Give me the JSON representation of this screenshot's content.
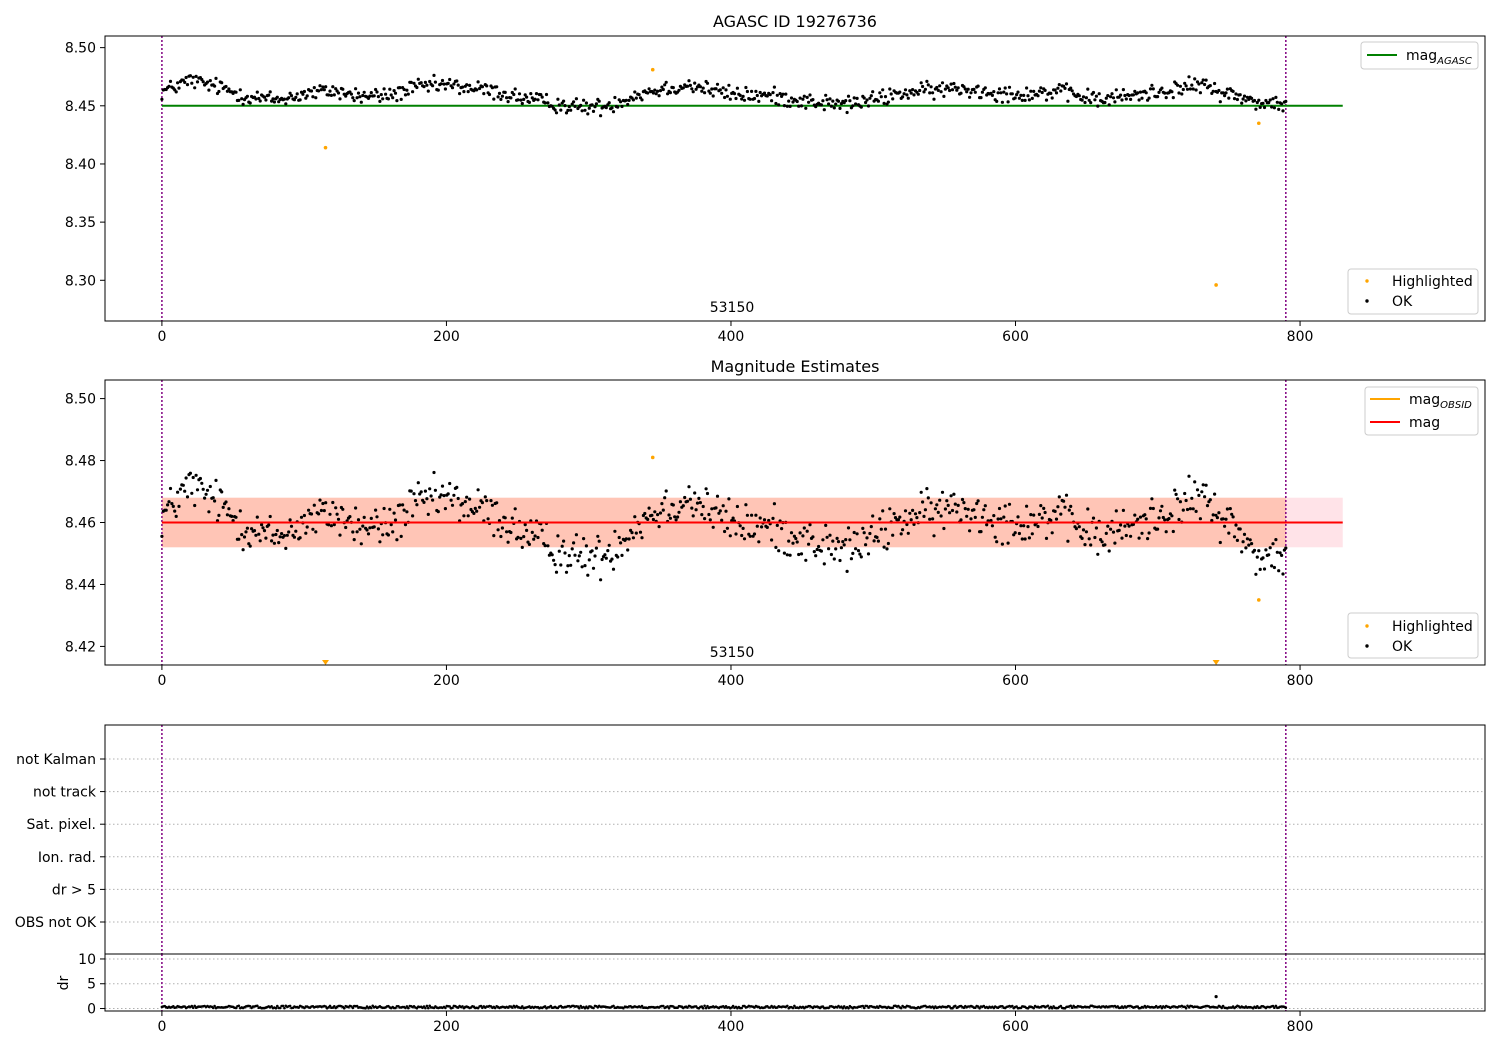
{
  "chart_data": [
    {
      "type": "scatter",
      "title": "AGASC ID 19276736",
      "xlim": [
        -40,
        930
      ],
      "ylim": [
        8.265,
        8.51
      ],
      "x_ticks": [
        0,
        200,
        400,
        600,
        800
      ],
      "x_tick_labels": [
        "0",
        "200",
        "400",
        "600",
        "800"
      ],
      "y_ticks": [
        8.3,
        8.35,
        8.4,
        8.45,
        8.5
      ],
      "y_tick_labels": [
        "8.30",
        "8.35",
        "8.40",
        "8.45",
        "8.50"
      ],
      "obsid_annotation": "53150",
      "obsid_boundaries": [
        0,
        790
      ],
      "reference_lines": [
        {
          "name": "mag_AGASC",
          "legend_main": "mag",
          "legend_sub": "AGASC",
          "y": 8.45,
          "x_range": [
            0,
            830
          ],
          "color": "#008000"
        }
      ],
      "line_legend_position": "top-right",
      "series": [
        {
          "name": "Highlighted",
          "color": "#ffa500",
          "points": [
            [
              115,
              8.414
            ],
            [
              345,
              8.481
            ],
            [
              741,
              8.296
            ],
            [
              771,
              8.435
            ]
          ]
        },
        {
          "name": "OK",
          "color": "#000000",
          "n_points": 790,
          "x_range": [
            0,
            790
          ],
          "y_profile_x": [
            0,
            20,
            40,
            60,
            80,
            100,
            120,
            140,
            160,
            180,
            200,
            230,
            260,
            290,
            310,
            340,
            370,
            400,
            430,
            460,
            480,
            500,
            520,
            560,
            600,
            630,
            660,
            700,
            730,
            750,
            770,
            790
          ],
          "y_profile": [
            8.462,
            8.472,
            8.466,
            8.458,
            8.455,
            8.46,
            8.463,
            8.458,
            8.459,
            8.466,
            8.468,
            8.463,
            8.455,
            8.449,
            8.449,
            8.462,
            8.468,
            8.46,
            8.458,
            8.453,
            8.451,
            8.455,
            8.461,
            8.465,
            8.46,
            8.462,
            8.455,
            8.462,
            8.468,
            8.46,
            8.453,
            8.451
          ],
          "y_spread": 0.005
        }
      ],
      "legend": [
        {
          "label": "Highlighted",
          "color": "#ffa500"
        },
        {
          "label": "OK",
          "color": "#000000"
        }
      ],
      "legend_position": "bottom-right"
    },
    {
      "type": "scatter",
      "title": "Magnitude Estimates",
      "xlim": [
        -40,
        930
      ],
      "ylim": [
        8.414,
        8.506
      ],
      "x_ticks": [
        0,
        200,
        400,
        600,
        800
      ],
      "x_tick_labels": [
        "0",
        "200",
        "400",
        "600",
        "800"
      ],
      "y_ticks": [
        8.42,
        8.44,
        8.46,
        8.48,
        8.5
      ],
      "y_tick_labels": [
        "8.42",
        "8.44",
        "8.46",
        "8.48",
        "8.50"
      ],
      "obsid_annotation": "53150",
      "obsid_boundaries": [
        0,
        790
      ],
      "bands": [
        {
          "y_range": [
            8.452,
            8.468
          ],
          "x_range": [
            0,
            830
          ],
          "color": "#ffc0cb"
        },
        {
          "y_range": [
            8.452,
            8.468
          ],
          "x_range": [
            0,
            790
          ],
          "color": "#ffa07a"
        }
      ],
      "reference_lines": [
        {
          "name": "mag_OBSID",
          "legend_main": "mag",
          "legend_sub": "OBSID",
          "y": 8.46,
          "x_range": [
            0,
            790
          ],
          "color": "#ffa500"
        },
        {
          "name": "mag",
          "legend_main": "mag",
          "legend_sub": "",
          "y": 8.46,
          "x_range": [
            0,
            830
          ],
          "color": "#ff0000"
        }
      ],
      "line_legend_position": "top-right",
      "offscale_markers": [
        {
          "x": 115,
          "color": "#ffa500"
        },
        {
          "x": 741,
          "color": "#ffa500"
        }
      ],
      "series": [
        {
          "name": "Highlighted",
          "color": "#ffa500",
          "points": [
            [
              345,
              8.481
            ],
            [
              771,
              8.435
            ]
          ]
        },
        {
          "name": "OK",
          "color": "#000000",
          "n_points": 790,
          "x_range": [
            0,
            790
          ],
          "y_profile_x": [
            0,
            20,
            40,
            60,
            80,
            100,
            120,
            140,
            160,
            180,
            200,
            230,
            260,
            290,
            310,
            340,
            370,
            400,
            430,
            460,
            480,
            500,
            520,
            560,
            600,
            630,
            660,
            700,
            730,
            750,
            770,
            790
          ],
          "y_profile": [
            8.462,
            8.472,
            8.466,
            8.458,
            8.455,
            8.46,
            8.463,
            8.458,
            8.459,
            8.466,
            8.468,
            8.463,
            8.455,
            8.449,
            8.449,
            8.462,
            8.468,
            8.46,
            8.458,
            8.453,
            8.451,
            8.455,
            8.461,
            8.465,
            8.46,
            8.462,
            8.455,
            8.462,
            8.468,
            8.46,
            8.449,
            8.449
          ],
          "y_spread": 0.005
        }
      ],
      "legend": [
        {
          "label": "Highlighted",
          "color": "#ffa500"
        },
        {
          "label": "OK",
          "color": "#000000"
        }
      ],
      "legend_position": "bottom-right"
    },
    {
      "type": "scatter",
      "title": "",
      "categories": [
        "not Kalman",
        "not track",
        "Sat. pixel.",
        "Ion. rad.",
        "dr > 5",
        "OBS not OK"
      ],
      "obsid_boundaries": [
        0,
        790
      ],
      "xlim": [
        -40,
        930
      ]
    },
    {
      "type": "scatter",
      "title": "",
      "ylabel": "dr",
      "xlim": [
        -40,
        930
      ],
      "ylim": [
        -0.5,
        11
      ],
      "x_ticks": [
        0,
        200,
        400,
        600,
        800
      ],
      "x_tick_labels": [
        "0",
        "200",
        "400",
        "600",
        "800"
      ],
      "y_ticks": [
        0,
        5,
        10
      ],
      "y_tick_labels": [
        "0",
        "5",
        "10"
      ],
      "obsid_boundaries": [
        0,
        790
      ],
      "series": [
        {
          "name": "OK",
          "color": "#000000",
          "n_points": 790,
          "x_range": [
            0,
            790
          ],
          "baseline": 0.3,
          "spread": 0.25
        },
        {
          "name": "Highlighted",
          "color": "#000000",
          "points": [
            [
              741,
              2.4
            ]
          ]
        }
      ]
    }
  ]
}
